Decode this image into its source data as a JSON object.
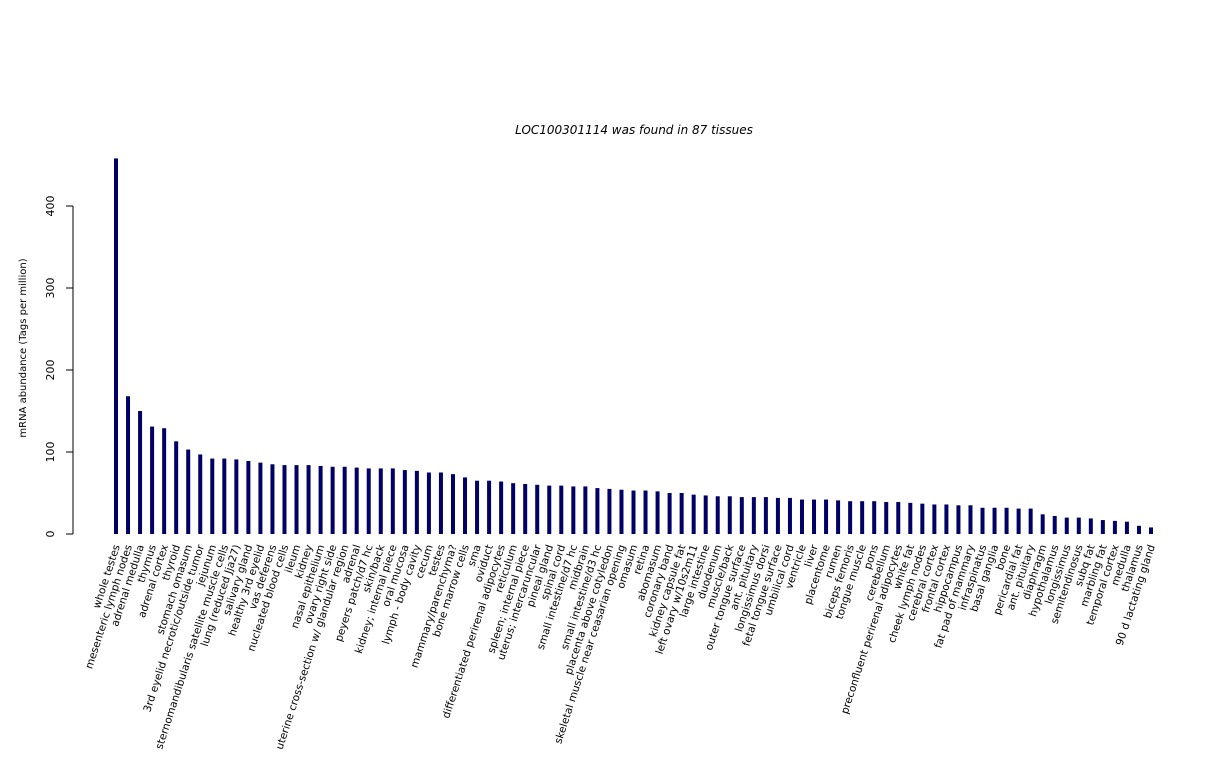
{
  "chart_data": {
    "type": "bar",
    "title": "LOC100301114  was found in  87  tissues",
    "xlabel": "",
    "ylabel": "mRNA abundance (Tags per million)",
    "ylim": [
      0,
      460
    ],
    "yticks": [
      0,
      100,
      200,
      300,
      400
    ],
    "grid": false,
    "legend": "none",
    "bar_color": "#000066",
    "categories": [
      "whole testes",
      "mesenteric lymph nodes",
      "adrenal medulla",
      "thymus",
      "adrenal cortex",
      "thyroid",
      "stomach omasum",
      "3rd eyelid necrotic/outside tumor",
      "jejunum",
      "sternomandibularis satellite muscle cells",
      "lung (reduced Jja27)",
      "salivary gland",
      "healthy 3rd eyelid",
      "vas deferens",
      "nucleated blood cells",
      "ileum",
      "kidney",
      "nasal epithelium",
      "ovary right side",
      "uterine cross-section w/ glandular region",
      "adrenal",
      "peyers patch/d7 hc",
      "skin/back",
      "kidney; internal piece",
      "oral mucosa",
      "lymph - body cavity",
      "cecum",
      "testes",
      "mammary/parenchyma?",
      "bone marrow cells",
      "sma",
      "oviduct",
      "differentiated perirenal adipocytes",
      "reticulum",
      "spleen; internal piece",
      "uterus; intercaruncular",
      "pineal gland",
      "spinal cord",
      "small intestine/d7 hc",
      "midbrain",
      "small intestine/d3 hc",
      "placenta above cotyledon",
      "skeletal muscle near ceasarian opening",
      "omasum",
      "retina",
      "abomasum",
      "coronary band",
      "kidney capsule fat",
      "left ovary w/10s2m11",
      "large intestine",
      "duodenum",
      "muscle/back",
      "outer tongue surface",
      "ant. pituitary",
      "longissimus dorsi",
      "fetal tongue surface",
      "umbilical cord",
      "ventricle",
      "liver",
      "placentome",
      "rumen",
      "biceps femoris",
      "tongue muscle",
      "pons",
      "cerebellum",
      "preconfluent perirenal adipocytes",
      "white fat",
      "cheek lymph nodes",
      "cerebral cortex",
      "frontal cortex",
      "hippocampus",
      "fat pad of mammary",
      "infraspinatus",
      "basal ganglia",
      "bone",
      "pericardial fat",
      "ant. pituitary",
      "diaphragm",
      "hypothalamus",
      "longissimus",
      "semitendinosus",
      "subq fat",
      "marbling fat",
      "temporal cortex",
      "medulla",
      "thalamus",
      "90 d lactating gland"
    ],
    "values": [
      458,
      168,
      150,
      131,
      129,
      113,
      103,
      97,
      92,
      92,
      91,
      89,
      87,
      85,
      84,
      84,
      84,
      83,
      82,
      82,
      81,
      80,
      80,
      80,
      78,
      77,
      75,
      75,
      73,
      69,
      65,
      65,
      64,
      62,
      61,
      60,
      59,
      59,
      58,
      58,
      56,
      55,
      54,
      53,
      53,
      52,
      50,
      50,
      48,
      47,
      46,
      46,
      45,
      45,
      45,
      44,
      44,
      42,
      42,
      42,
      41,
      40,
      40,
      40,
      39,
      39,
      38,
      37,
      36,
      36,
      35,
      35,
      32,
      32,
      32,
      31,
      31,
      24,
      22,
      20,
      20,
      19,
      17,
      16,
      15,
      10,
      8
    ]
  }
}
